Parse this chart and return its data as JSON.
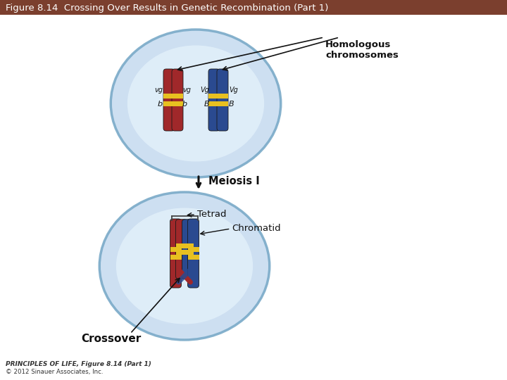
{
  "title": "Figure 8.14  Crossing Over Results in Genetic Recombination (Part 1)",
  "title_bg": "#7B3F2E",
  "title_color": "#FFFFFF",
  "bg_color": "#FFFFFF",
  "cell_fill": "#C8DCF0",
  "cell_inner_fill": "#E2F0FA",
  "cell_edge": "#7AAAC8",
  "chr_red": "#A0282A",
  "chr_red_light": "#C04040",
  "chr_blue": "#2A4A90",
  "chr_blue_light": "#4A6AB0",
  "chr_band": "#E8C020",
  "text_dark": "#111111",
  "arrow_color": "#111111",
  "footer1": "PRINCIPLES OF LIFE, Figure 8.14 (Part 1)",
  "footer2": "© 2012 Sinauer Associates, Inc.",
  "label_homologous": "Homologous\nchromosomes",
  "label_meiosis": "Meiosis I",
  "label_tetrad": "Tetrad",
  "label_chromatid": "Chromatid",
  "label_crossover": "Crossover"
}
